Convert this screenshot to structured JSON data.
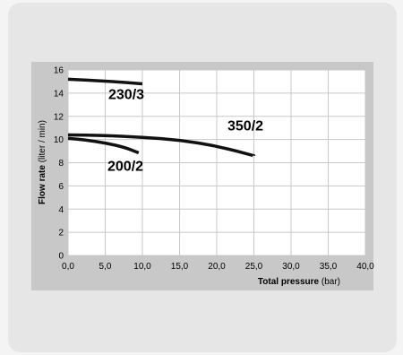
{
  "chart_data": {
    "type": "line",
    "xlabel_bold": "Total pressure",
    "xlabel_unit": " (bar)",
    "ylabel_bold": "Flow rate",
    "ylabel_unit": " (liter / min)",
    "xlim": [
      0,
      40
    ],
    "ylim": [
      0,
      16
    ],
    "x_ticks": [
      "0,0",
      "5,0",
      "10,0",
      "15,0",
      "20,0",
      "25,0",
      "30,0",
      "35,0",
      "40,0"
    ],
    "y_ticks": [
      "0",
      "2",
      "4",
      "6",
      "8",
      "10",
      "12",
      "14",
      "16"
    ],
    "grid": true,
    "series": [
      {
        "name": "230/3",
        "x": [
          0,
          5,
          10
        ],
        "y": [
          15.2,
          15.05,
          14.8
        ]
      },
      {
        "name": "350/2",
        "x": [
          0,
          5,
          10,
          15,
          20,
          25
        ],
        "y": [
          10.4,
          10.35,
          10.2,
          9.95,
          9.45,
          8.6
        ]
      },
      {
        "name": "200/2",
        "x": [
          0,
          2.5,
          5,
          7.5,
          9.5
        ],
        "y": [
          10.1,
          9.95,
          9.7,
          9.35,
          8.85
        ]
      }
    ]
  }
}
